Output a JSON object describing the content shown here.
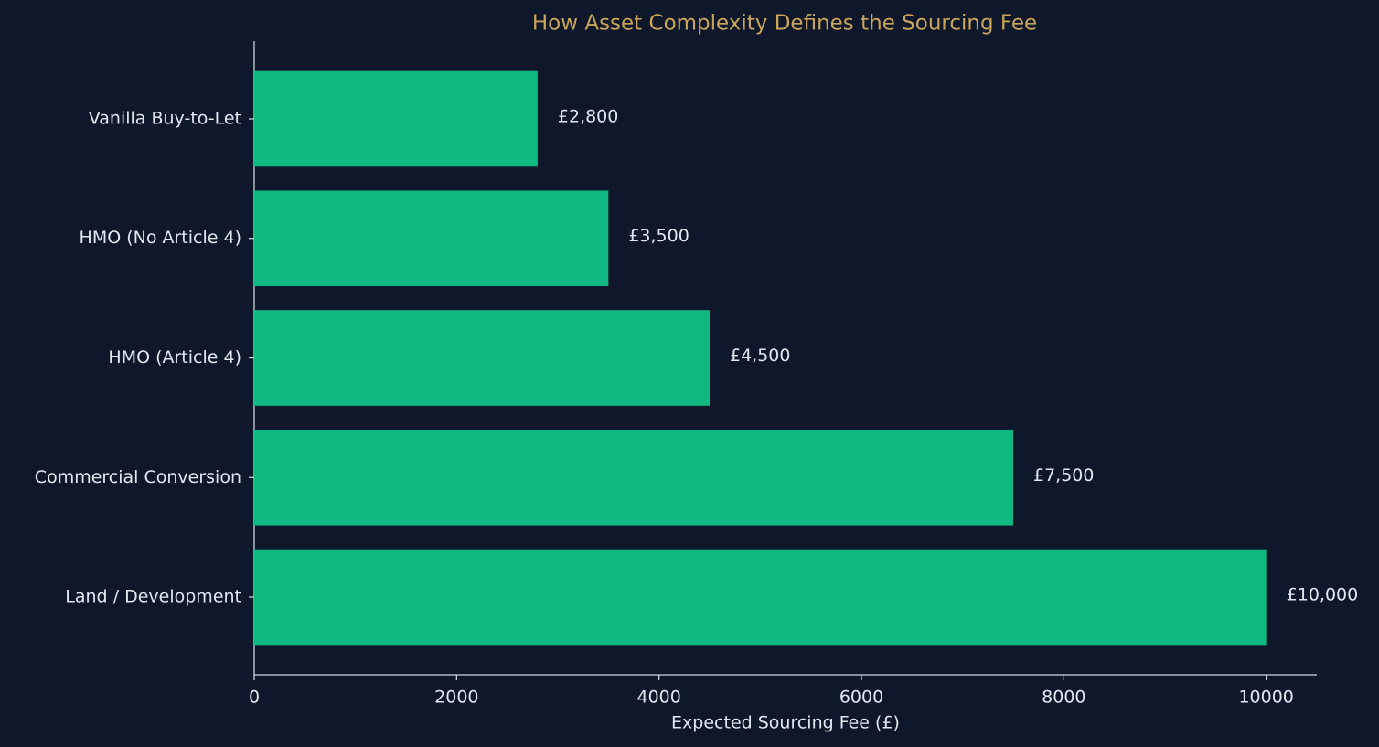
{
  "chart_data": {
    "type": "hbar",
    "title": "How Asset Complexity Defines the Sourcing Fee",
    "categories": [
      "Vanilla Buy-to-Let",
      "HMO (No Article 4)",
      "HMO (Article 4)",
      "Commercial Conversion",
      "Land / Development"
    ],
    "values": [
      2800,
      3500,
      4500,
      7500,
      10000
    ],
    "value_labels": [
      "£2,800",
      "£3,500",
      "£4,500",
      "£7,500",
      "£10,000"
    ],
    "color": "#10b981",
    "xlabel": "Expected Sourcing Fee (£)",
    "xlim": [
      0,
      10500
    ],
    "xticks": [
      0,
      2000,
      4000,
      6000,
      8000,
      10000
    ],
    "grid": false
  }
}
